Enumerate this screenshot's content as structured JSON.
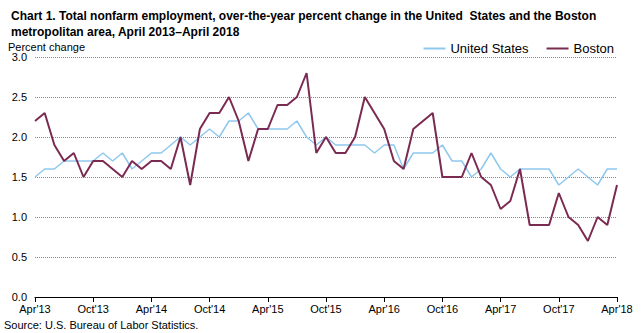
{
  "chart_data": {
    "type": "line",
    "title": "Chart 1. Total nonfarm employment, over-the-year percent change in the United  States and the Boston metropolitan area, April 2013–April 2018",
    "ylabel": "Percent change",
    "note": "Source: U.S. Bureau of Labor Statistics.",
    "categories": [
      "Apr'13",
      null,
      null,
      null,
      null,
      null,
      "Oct'13",
      null,
      null,
      null,
      null,
      null,
      "Apr'14",
      null,
      null,
      null,
      null,
      null,
      "Oct'14",
      null,
      null,
      null,
      null,
      null,
      "Apr'15",
      null,
      null,
      null,
      null,
      null,
      "Oct'15",
      null,
      null,
      null,
      null,
      null,
      "Apr'16",
      null,
      null,
      null,
      null,
      null,
      "Oct'16",
      null,
      null,
      null,
      null,
      null,
      "Apr'17",
      null,
      null,
      null,
      null,
      null,
      "Oct'17",
      null,
      null,
      null,
      null,
      null,
      "Apr'18"
    ],
    "series": [
      {
        "name": "United States",
        "color": "#8fc8ef",
        "values": [
          1.5,
          1.6,
          1.6,
          1.7,
          1.7,
          1.7,
          1.7,
          1.8,
          1.7,
          1.8,
          1.6,
          1.7,
          1.8,
          1.8,
          1.9,
          2.0,
          1.9,
          2.0,
          2.1,
          2.0,
          2.2,
          2.2,
          2.3,
          2.1,
          2.1,
          2.1,
          2.1,
          2.2,
          2.0,
          1.9,
          2.0,
          1.9,
          1.9,
          1.9,
          1.9,
          1.8,
          1.9,
          1.9,
          1.6,
          1.8,
          1.8,
          1.8,
          1.9,
          1.7,
          1.7,
          1.5,
          1.6,
          1.8,
          1.6,
          1.5,
          1.6,
          1.6,
          1.6,
          1.6,
          1.4,
          1.5,
          1.6,
          1.5,
          1.4,
          1.6,
          1.6
        ]
      },
      {
        "name": "Boston",
        "color": "#7b2a52",
        "values": [
          2.2,
          2.3,
          1.9,
          1.7,
          1.8,
          1.5,
          1.7,
          1.7,
          1.6,
          1.5,
          1.7,
          1.6,
          1.7,
          1.7,
          1.6,
          2.0,
          1.4,
          2.1,
          2.3,
          2.3,
          2.5,
          2.2,
          1.7,
          2.1,
          2.1,
          2.4,
          2.4,
          2.5,
          2.8,
          1.8,
          2.0,
          1.8,
          1.8,
          2.0,
          2.5,
          2.3,
          2.1,
          1.7,
          1.6,
          2.1,
          2.2,
          2.3,
          1.5,
          1.5,
          1.5,
          1.8,
          1.5,
          1.4,
          1.1,
          1.2,
          1.6,
          0.9,
          0.9,
          0.9,
          1.3,
          1.0,
          0.9,
          0.7,
          1.0,
          0.9,
          1.4
        ]
      }
    ],
    "ylim": [
      0,
      3
    ],
    "yticks": [
      {
        "value": 0,
        "label": "0.0"
      },
      {
        "value": 0.5,
        "label": "0.5"
      },
      {
        "value": 1,
        "label": "1.0"
      },
      {
        "value": 1.5,
        "label": "1.5"
      },
      {
        "value": 2,
        "label": "2.0"
      },
      {
        "value": 2.5,
        "label": "2.5"
      },
      {
        "value": 3,
        "label": "3.0"
      }
    ],
    "grid": true,
    "legend": "top-right"
  }
}
